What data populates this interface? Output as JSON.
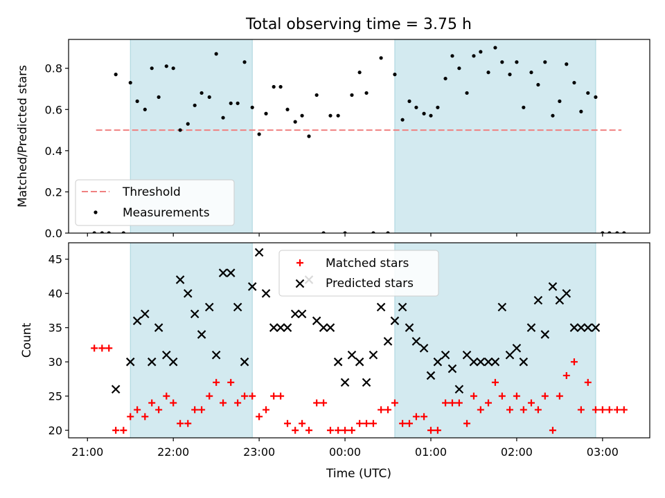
{
  "chart_data": [
    {
      "type": "scatter",
      "title": "Total observing time = 3.75 h",
      "xlabel": "",
      "ylabel": "Matched/Predicted stars",
      "ylim": [
        0,
        0.94
      ],
      "yticks": [
        "0.0",
        "0.2",
        "0.4",
        "0.6",
        "0.8"
      ],
      "ytick_values": [
        0,
        0.2,
        0.4,
        0.6,
        0.8
      ],
      "x_unit": "hours since 21:00 UTC",
      "xlim": [
        -0.22,
        6.55
      ],
      "shaded_intervals": [
        [
          0.5,
          1.92
        ],
        [
          3.58,
          5.92
        ]
      ],
      "shade_color": "#d3eaf0",
      "threshold": {
        "y": 0.5,
        "x_range": [
          0.1,
          6.22
        ],
        "color": "#f08080"
      },
      "legend": {
        "position": "lower left",
        "threshold_label": "Threshold",
        "measurements_label": "Measurements"
      },
      "measurements": {
        "x": [
          0.08,
          0.17,
          0.25,
          0.33,
          0.42,
          0.5,
          0.58,
          0.67,
          0.75,
          0.83,
          0.92,
          1.0,
          1.08,
          1.17,
          1.25,
          1.33,
          1.42,
          1.5,
          1.58,
          1.67,
          1.75,
          1.83,
          1.92,
          2.0,
          2.08,
          2.17,
          2.25,
          2.33,
          2.42,
          2.5,
          2.58,
          2.67,
          2.75,
          2.83,
          2.92,
          3.0,
          3.08,
          3.17,
          3.25,
          3.33,
          3.42,
          3.5,
          3.58,
          3.67,
          3.75,
          3.83,
          3.92,
          4.0,
          4.08,
          4.17,
          4.25,
          4.33,
          4.42,
          4.5,
          4.58,
          4.67,
          4.75,
          4.83,
          4.92,
          5.0,
          5.08,
          5.17,
          5.25,
          5.33,
          5.42,
          5.5,
          5.58,
          5.67,
          5.75,
          5.83,
          5.92,
          6.0,
          6.08,
          6.17,
          6.25
        ],
        "y": [
          0,
          0,
          0,
          0.77,
          0,
          0.73,
          0.64,
          0.6,
          0.8,
          0.66,
          0.81,
          0.8,
          0.5,
          0.53,
          0.62,
          0.68,
          0.66,
          0.87,
          0.56,
          0.63,
          0.63,
          0.83,
          0.61,
          0.48,
          0.58,
          0.71,
          0.71,
          0.6,
          0.54,
          0.57,
          0.47,
          0.67,
          0,
          0.57,
          0.57,
          0,
          0.67,
          0.78,
          0.68,
          0,
          0.85,
          0,
          0.77,
          0.55,
          0.64,
          0.61,
          0.58,
          0.57,
          0.61,
          0.75,
          0.86,
          0.8,
          0.68,
          0.86,
          0.88,
          0.78,
          0.9,
          0.83,
          0.77,
          0.83,
          0.61,
          0.78,
          0.72,
          0.83,
          0.57,
          0.64,
          0.82,
          0.73,
          0.59,
          0.68,
          0.66,
          0,
          0,
          0,
          0
        ]
      }
    },
    {
      "type": "scatter",
      "title": "",
      "xlabel": "Time (UTC)",
      "ylabel": "Count",
      "ylim": [
        18.9,
        47.4
      ],
      "yticks": [
        "20",
        "25",
        "30",
        "35",
        "40",
        "45"
      ],
      "ytick_values": [
        20,
        25,
        30,
        35,
        40,
        45
      ],
      "x_unit": "hours since 21:00 UTC",
      "xlim": [
        -0.22,
        6.55
      ],
      "xticks": [
        "21:00",
        "22:00",
        "23:00",
        "00:00",
        "01:00",
        "02:00",
        "03:00"
      ],
      "xtick_values": [
        0,
        1,
        2,
        3,
        4,
        5,
        6
      ],
      "shaded_intervals": [
        [
          0.5,
          1.92
        ],
        [
          3.58,
          5.92
        ]
      ],
      "legend": {
        "position": "upper center"
      },
      "series": [
        {
          "name": "Matched stars",
          "marker": "+",
          "color": "#ff0000",
          "x": [
            0.08,
            0.17,
            0.25,
            0.33,
            0.42,
            0.5,
            0.58,
            0.67,
            0.75,
            0.83,
            0.92,
            1.0,
            1.08,
            1.17,
            1.25,
            1.33,
            1.42,
            1.5,
            1.58,
            1.67,
            1.75,
            1.83,
            1.92,
            2.0,
            2.08,
            2.17,
            2.25,
            2.33,
            2.42,
            2.5,
            2.58,
            2.67,
            2.75,
            2.83,
            2.92,
            3.0,
            3.08,
            3.17,
            3.25,
            3.33,
            3.42,
            3.5,
            3.58,
            3.67,
            3.75,
            3.83,
            3.92,
            4.0,
            4.08,
            4.17,
            4.25,
            4.33,
            4.42,
            4.5,
            4.58,
            4.67,
            4.75,
            4.83,
            4.92,
            5.0,
            5.08,
            5.17,
            5.25,
            5.33,
            5.42,
            5.5,
            5.58,
            5.67,
            5.75,
            5.83,
            5.92,
            6.0,
            6.08,
            6.17,
            6.25
          ],
          "y": [
            32,
            32,
            32,
            20,
            20,
            22,
            23,
            22,
            24,
            23,
            25,
            24,
            21,
            21,
            23,
            23,
            25,
            27,
            24,
            27,
            24,
            25,
            25,
            22,
            23,
            25,
            25,
            21,
            20,
            21,
            20,
            24,
            24,
            20,
            20,
            20,
            20,
            21,
            21,
            21,
            23,
            23,
            24,
            21,
            21,
            22,
            22,
            20,
            20,
            24,
            24,
            24,
            21,
            25,
            23,
            24,
            27,
            25,
            23,
            25,
            23,
            24,
            23,
            25,
            20,
            25,
            28,
            30,
            23,
            27,
            23,
            23,
            23,
            23,
            23
          ]
        },
        {
          "name": "Predicted stars",
          "marker": "x",
          "color": "#000000",
          "x": [
            0.33,
            0.5,
            0.58,
            0.67,
            0.75,
            0.83,
            0.92,
            1.0,
            1.08,
            1.17,
            1.25,
            1.33,
            1.42,
            1.5,
            1.58,
            1.67,
            1.75,
            1.83,
            1.92,
            2.0,
            2.08,
            2.17,
            2.25,
            2.33,
            2.42,
            2.5,
            2.58,
            2.67,
            2.75,
            2.83,
            2.92,
            3.0,
            3.08,
            3.17,
            3.25,
            3.33,
            3.42,
            3.5,
            3.58,
            3.67,
            3.75,
            3.83,
            3.92,
            4.0,
            4.08,
            4.17,
            4.25,
            4.33,
            4.42,
            4.5,
            4.58,
            4.67,
            4.75,
            4.83,
            4.92,
            5.0,
            5.08,
            5.17,
            5.25,
            5.33,
            5.42,
            5.5,
            5.58,
            5.67,
            5.75,
            5.83,
            5.92
          ],
          "y": [
            26,
            30,
            36,
            37,
            30,
            35,
            31,
            30,
            42,
            40,
            37,
            34,
            38,
            31,
            43,
            43,
            38,
            30,
            41,
            46,
            40,
            35,
            35,
            35,
            37,
            37,
            42,
            36,
            35,
            35,
            30,
            27,
            31,
            30,
            27,
            31,
            38,
            33,
            36,
            38,
            35,
            33,
            32,
            28,
            30,
            31,
            29,
            26,
            31,
            30,
            30,
            30,
            30,
            38,
            31,
            32,
            30,
            35,
            39,
            34,
            41,
            39,
            40,
            35,
            35,
            35,
            35
          ]
        }
      ]
    }
  ]
}
